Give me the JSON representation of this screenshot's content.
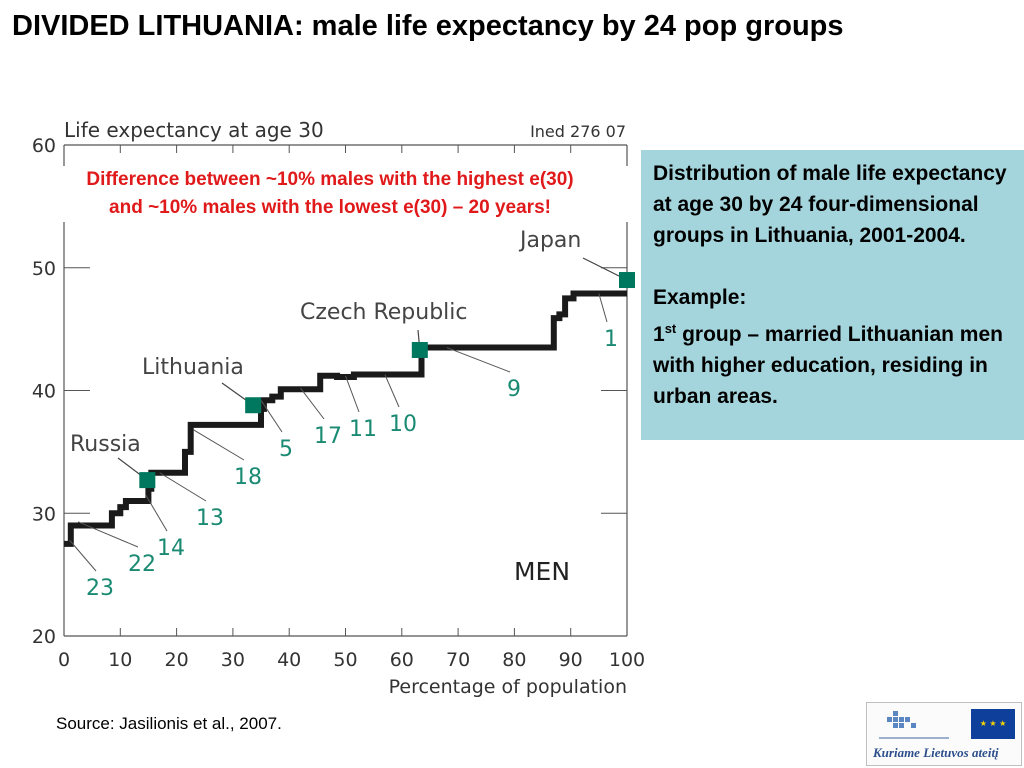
{
  "slide": {
    "title": "DIVIDED LITHUANIA: male life expectancy by 24 pop groups",
    "difference_note": [
      "Difference between ~10% males with the highest e(30)",
      "and ~10% males with the lowest e(30) – 20 years!"
    ],
    "source": "Source: Jasilionis et al., 2007."
  },
  "info_box": {
    "description": "Distribution of male life expectancy at age 30 by 24 four-dimensional groups in Lithuania, 2001-2004.",
    "example_label": "Example:",
    "example_prefix": "1",
    "example_superscript": "st",
    "example_text": " group – married Lithuanian men with higher education, residing in urban areas."
  },
  "logo": {
    "slogan": "Kuriame Lietuvos ateitį"
  },
  "colors": {
    "difference_note": "#e0191a",
    "info_box_background": "#a5d5dc",
    "step_line": "#1a1a1a",
    "country_marker": "#00785f",
    "group_label": "#1a8a73"
  },
  "chart_data": {
    "type": "line",
    "title": "Life expectancy at age 30",
    "credit": "Ined 276 07",
    "xlabel": "Percentage of population",
    "ylabel": "",
    "xlim": [
      0,
      100
    ],
    "ylim": [
      20,
      60
    ],
    "x_ticks": [
      "0",
      "10",
      "20",
      "30",
      "40",
      "50",
      "60",
      "70",
      "80",
      "90",
      "100"
    ],
    "y_ticks": [
      "20",
      "30",
      "40",
      "50",
      "60"
    ],
    "panel_label": "MEN",
    "grid": false,
    "series": [
      {
        "step_x": [
          0,
          1.2,
          1.2,
          8.5,
          8.5,
          10,
          10,
          11,
          11,
          15,
          15,
          15.5,
          15.5,
          21.5,
          21.5,
          22.5,
          22.5,
          35,
          35,
          35.5,
          35.5,
          37,
          37,
          38.5,
          38.5,
          45.5,
          45.5,
          48.5,
          48.5,
          51.5,
          51.5,
          63.5,
          63.5,
          87,
          87,
          88,
          88,
          89,
          89,
          90.5,
          90.5,
          100
        ],
        "step_y": [
          27.5,
          27.5,
          29,
          29,
          30,
          30,
          30.5,
          30.5,
          31,
          31,
          32,
          32,
          33.3,
          33.3,
          35,
          35,
          37.2,
          37.2,
          38.5,
          38.5,
          39.2,
          39.2,
          39.5,
          39.5,
          40.1,
          40.1,
          41.2,
          41.2,
          41.1,
          41.1,
          41.3,
          41.3,
          43.5,
          43.5,
          45.9,
          45.9,
          46.2,
          46.2,
          47.5,
          47.5,
          47.9,
          47.9
        ]
      }
    ],
    "countries": [
      {
        "name": "Russia",
        "x": 14.8,
        "y": 32.7
      },
      {
        "name": "Lithuania",
        "x": 33.6,
        "y": 38.8
      },
      {
        "name": "Czech Republic",
        "x": 63.2,
        "y": 43.3
      },
      {
        "name": "Japan",
        "x": 100,
        "y": 49
      }
    ],
    "group_labels": [
      {
        "label": "23",
        "point": [
          1,
          27.8
        ]
      },
      {
        "label": "22",
        "point": [
          2.5,
          29.3
        ]
      },
      {
        "label": "14",
        "point": [
          14.5,
          31.5
        ]
      },
      {
        "label": "13",
        "point": [
          17,
          33.3
        ]
      },
      {
        "label": "18",
        "point": [
          23,
          36.8
        ]
      },
      {
        "label": "5",
        "point": [
          35,
          39.2
        ]
      },
      {
        "label": "17",
        "point": [
          42,
          40.2
        ]
      },
      {
        "label": "11",
        "point": [
          50,
          41.2
        ]
      },
      {
        "label": "10",
        "point": [
          57,
          41.3
        ]
      },
      {
        "label": "9",
        "point": [
          68,
          43.5
        ]
      },
      {
        "label": "1",
        "point": [
          95,
          47.9
        ]
      }
    ]
  }
}
